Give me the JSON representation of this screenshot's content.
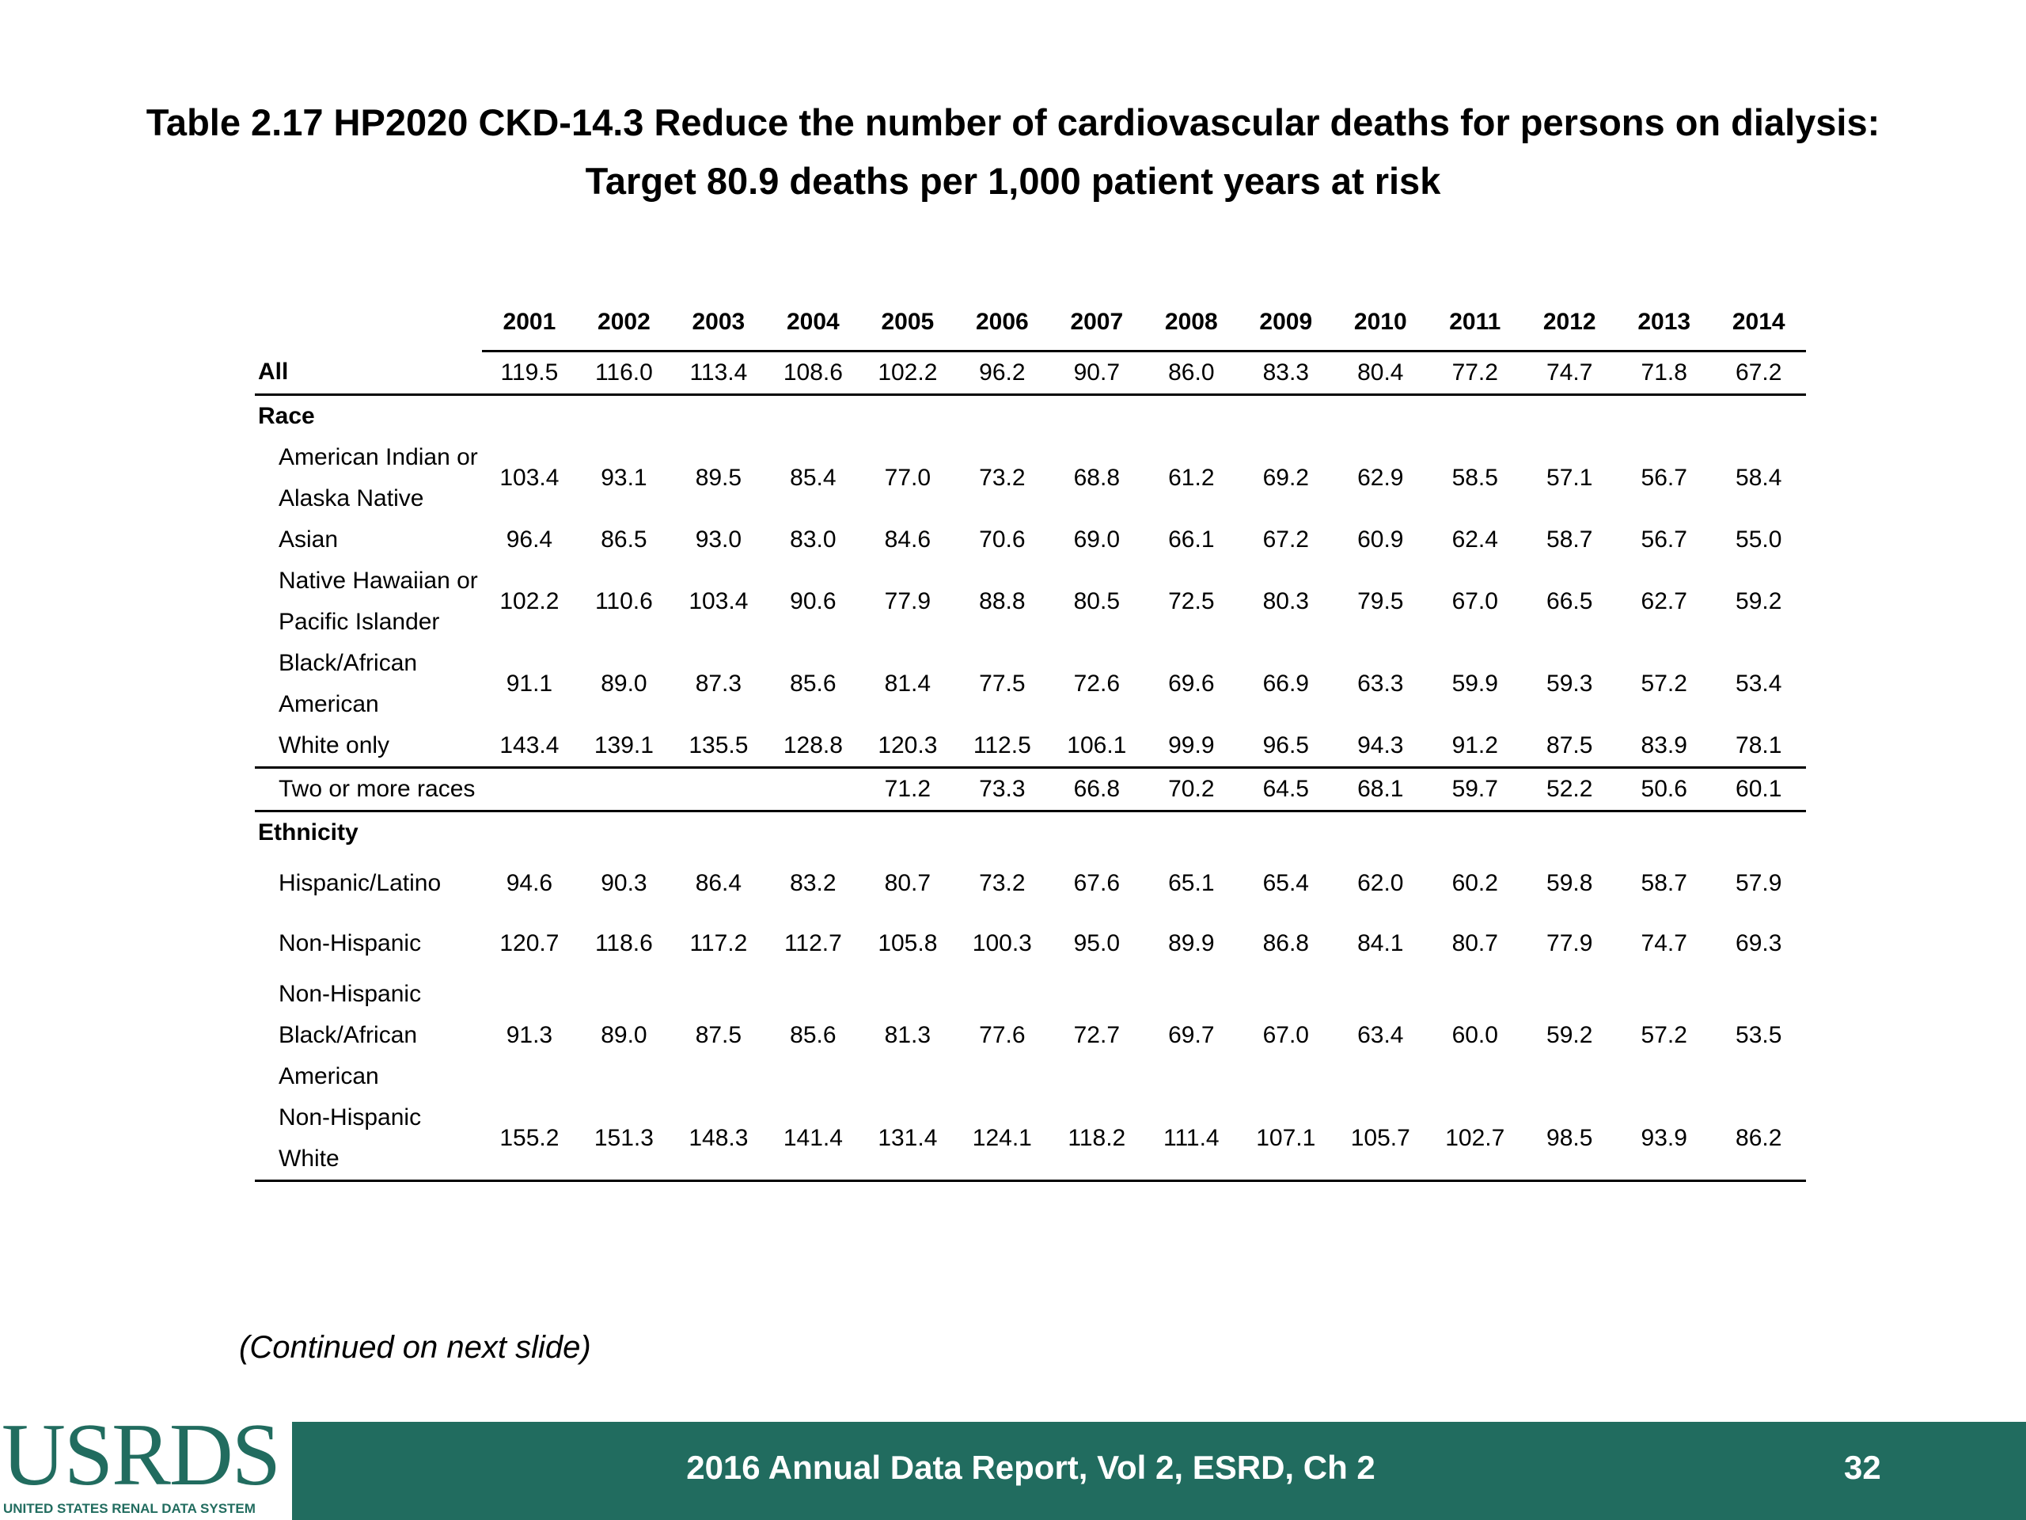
{
  "title": {
    "line1": "Table 2.17  HP2020 CKD-14.3 Reduce the number of cardiovascular deaths for persons on dialysis:",
    "line2": "Target 80.9 deaths per 1,000 patient years at risk"
  },
  "table": {
    "columns": [
      "2001",
      "2002",
      "2003",
      "2004",
      "2005",
      "2006",
      "2007",
      "2008",
      "2009",
      "2010",
      "2011",
      "2012",
      "2013",
      "2014"
    ],
    "rows": [
      {
        "label": "All",
        "values": [
          "119.5",
          "116.0",
          "113.4",
          "108.6",
          "102.2",
          "96.2",
          "90.7",
          "86.0",
          "83.3",
          "80.4",
          "77.2",
          "74.7",
          "71.8",
          "67.2"
        ]
      },
      {
        "label": "Race"
      },
      {
        "label": "American Indian or Alaska Native",
        "values": [
          "103.4",
          "93.1",
          "89.5",
          "85.4",
          "77.0",
          "73.2",
          "68.8",
          "61.2",
          "69.2",
          "62.9",
          "58.5",
          "57.1",
          "56.7",
          "58.4"
        ]
      },
      {
        "label": "Asian",
        "values": [
          "96.4",
          "86.5",
          "93.0",
          "83.0",
          "84.6",
          "70.6",
          "69.0",
          "66.1",
          "67.2",
          "60.9",
          "62.4",
          "58.7",
          "56.7",
          "55.0"
        ]
      },
      {
        "label": "Native Hawaiian or Pacific Islander",
        "values": [
          "102.2",
          "110.6",
          "103.4",
          "90.6",
          "77.9",
          "88.8",
          "80.5",
          "72.5",
          "80.3",
          "79.5",
          "67.0",
          "66.5",
          "62.7",
          "59.2"
        ]
      },
      {
        "label": "Black/African American",
        "values": [
          "91.1",
          "89.0",
          "87.3",
          "85.6",
          "81.4",
          "77.5",
          "72.6",
          "69.6",
          "66.9",
          "63.3",
          "59.9",
          "59.3",
          "57.2",
          "53.4"
        ]
      },
      {
        "label": "White only",
        "values": [
          "143.4",
          "139.1",
          "135.5",
          "128.8",
          "120.3",
          "112.5",
          "106.1",
          "99.9",
          "96.5",
          "94.3",
          "91.2",
          "87.5",
          "83.9",
          "78.1"
        ]
      },
      {
        "label": "Two or more races",
        "values": [
          null,
          null,
          null,
          null,
          "71.2",
          "73.3",
          "66.8",
          "70.2",
          "64.5",
          "68.1",
          "59.7",
          "52.2",
          "50.6",
          "60.1"
        ]
      },
      {
        "label": "Ethnicity"
      },
      {
        "label": "Hispanic/Latino",
        "values": [
          "94.6",
          "90.3",
          "86.4",
          "83.2",
          "80.7",
          "73.2",
          "67.6",
          "65.1",
          "65.4",
          "62.0",
          "60.2",
          "59.8",
          "58.7",
          "57.9"
        ]
      },
      {
        "label": "Non-Hispanic",
        "values": [
          "120.7",
          "118.6",
          "117.2",
          "112.7",
          "105.8",
          "100.3",
          "95.0",
          "89.9",
          "86.8",
          "84.1",
          "80.7",
          "77.9",
          "74.7",
          "69.3"
        ]
      },
      {
        "label": "Non-Hispanic Black/African American",
        "values": [
          "91.3",
          "89.0",
          "87.5",
          "85.6",
          "81.3",
          "77.6",
          "72.7",
          "69.7",
          "67.0",
          "63.4",
          "60.0",
          "59.2",
          "57.2",
          "53.5"
        ]
      },
      {
        "label": "Non-Hispanic White",
        "values": [
          "155.2",
          "151.3",
          "148.3",
          "141.4",
          "131.4",
          "124.1",
          "118.2",
          "111.4",
          "107.1",
          "105.7",
          "102.7",
          "98.5",
          "93.9",
          "86.2"
        ]
      }
    ]
  },
  "note": "(Continued on next slide)",
  "footer": {
    "logo": "USRDS",
    "logo_subtitle": "UNITED STATES RENAL DATA SYSTEM",
    "text": "2016 Annual Data Report, Vol 2, ESRD, Ch 2",
    "page": "32"
  }
}
